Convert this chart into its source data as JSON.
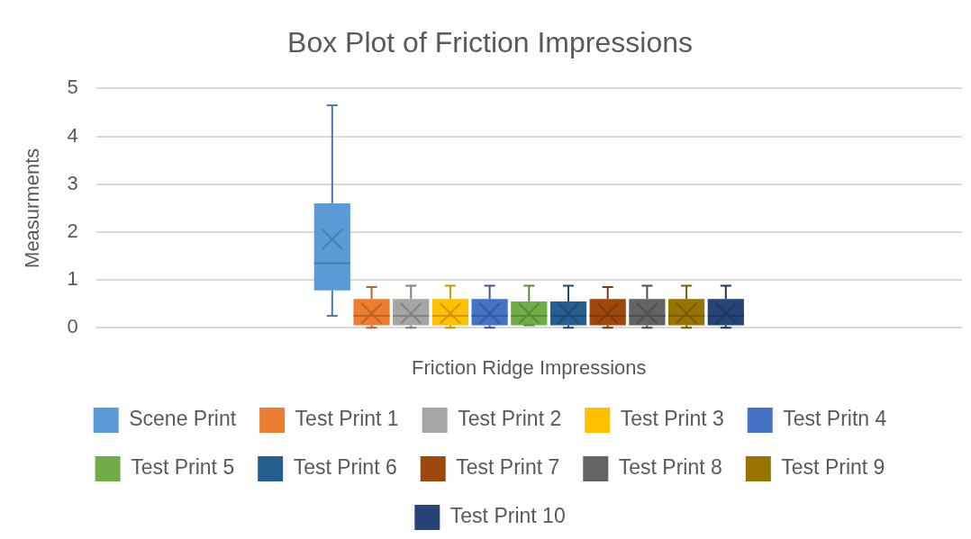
{
  "chart_data": {
    "type": "box",
    "title": "Box Plot of Friction Impressions",
    "xlabel": "Friction Ridge Impressions",
    "ylabel": "Measurments",
    "categories": [
      null
    ],
    "ylim": [
      0,
      5
    ],
    "yticks": [
      0,
      1,
      2,
      3,
      4,
      5
    ],
    "grid": "y",
    "legend": "bottom",
    "series": [
      {
        "name": "Scene Print",
        "color": "#5b9bd5",
        "boxes": [
          {
            "low": 0.25,
            "q1": 0.78,
            "median": 1.35,
            "q3": 2.6,
            "high": 4.65,
            "mean": 1.85
          }
        ]
      },
      {
        "name": "Test Print 1",
        "color": "#ed7d31",
        "boxes": [
          {
            "low": 0,
            "q1": 0.05,
            "median": 0.25,
            "q3": 0.6,
            "high": 0.85,
            "mean": 0.3
          }
        ]
      },
      {
        "name": "Test Print 2",
        "color": "#a5a5a5",
        "boxes": [
          {
            "low": 0,
            "q1": 0.05,
            "median": 0.25,
            "q3": 0.6,
            "high": 0.88,
            "mean": 0.3
          }
        ]
      },
      {
        "name": "Test Print 3",
        "color": "#ffc000",
        "boxes": [
          {
            "low": 0,
            "q1": 0.05,
            "median": 0.25,
            "q3": 0.6,
            "high": 0.88,
            "mean": 0.3
          }
        ]
      },
      {
        "name": "Test Pritn 4",
        "color": "#4472c4",
        "boxes": [
          {
            "low": 0,
            "q1": 0.05,
            "median": 0.25,
            "q3": 0.6,
            "high": 0.88,
            "mean": 0.3
          }
        ]
      },
      {
        "name": "Test Print 5",
        "color": "#70ad47",
        "boxes": [
          {
            "low": 0.05,
            "q1": 0.05,
            "median": 0.25,
            "q3": 0.55,
            "high": 0.88,
            "mean": 0.3
          }
        ]
      },
      {
        "name": "Test Print 6",
        "color": "#255e91",
        "boxes": [
          {
            "low": 0,
            "q1": 0.05,
            "median": 0.25,
            "q3": 0.55,
            "high": 0.88,
            "mean": 0.3
          }
        ]
      },
      {
        "name": "Test Print 7",
        "color": "#9e480e",
        "boxes": [
          {
            "low": 0,
            "q1": 0.05,
            "median": 0.25,
            "q3": 0.6,
            "high": 0.85,
            "mean": 0.3
          }
        ]
      },
      {
        "name": "Test Print 8",
        "color": "#636363",
        "boxes": [
          {
            "low": 0,
            "q1": 0.05,
            "median": 0.25,
            "q3": 0.6,
            "high": 0.88,
            "mean": 0.3
          }
        ]
      },
      {
        "name": "Test Print 9",
        "color": "#997300",
        "boxes": [
          {
            "low": 0,
            "q1": 0.05,
            "median": 0.25,
            "q3": 0.6,
            "high": 0.88,
            "mean": 0.3
          }
        ]
      },
      {
        "name": "Test Print 10",
        "color": "#264478",
        "boxes": [
          {
            "low": 0,
            "q1": 0.05,
            "median": 0.25,
            "q3": 0.6,
            "high": 0.88,
            "mean": 0.3
          }
        ]
      }
    ]
  }
}
